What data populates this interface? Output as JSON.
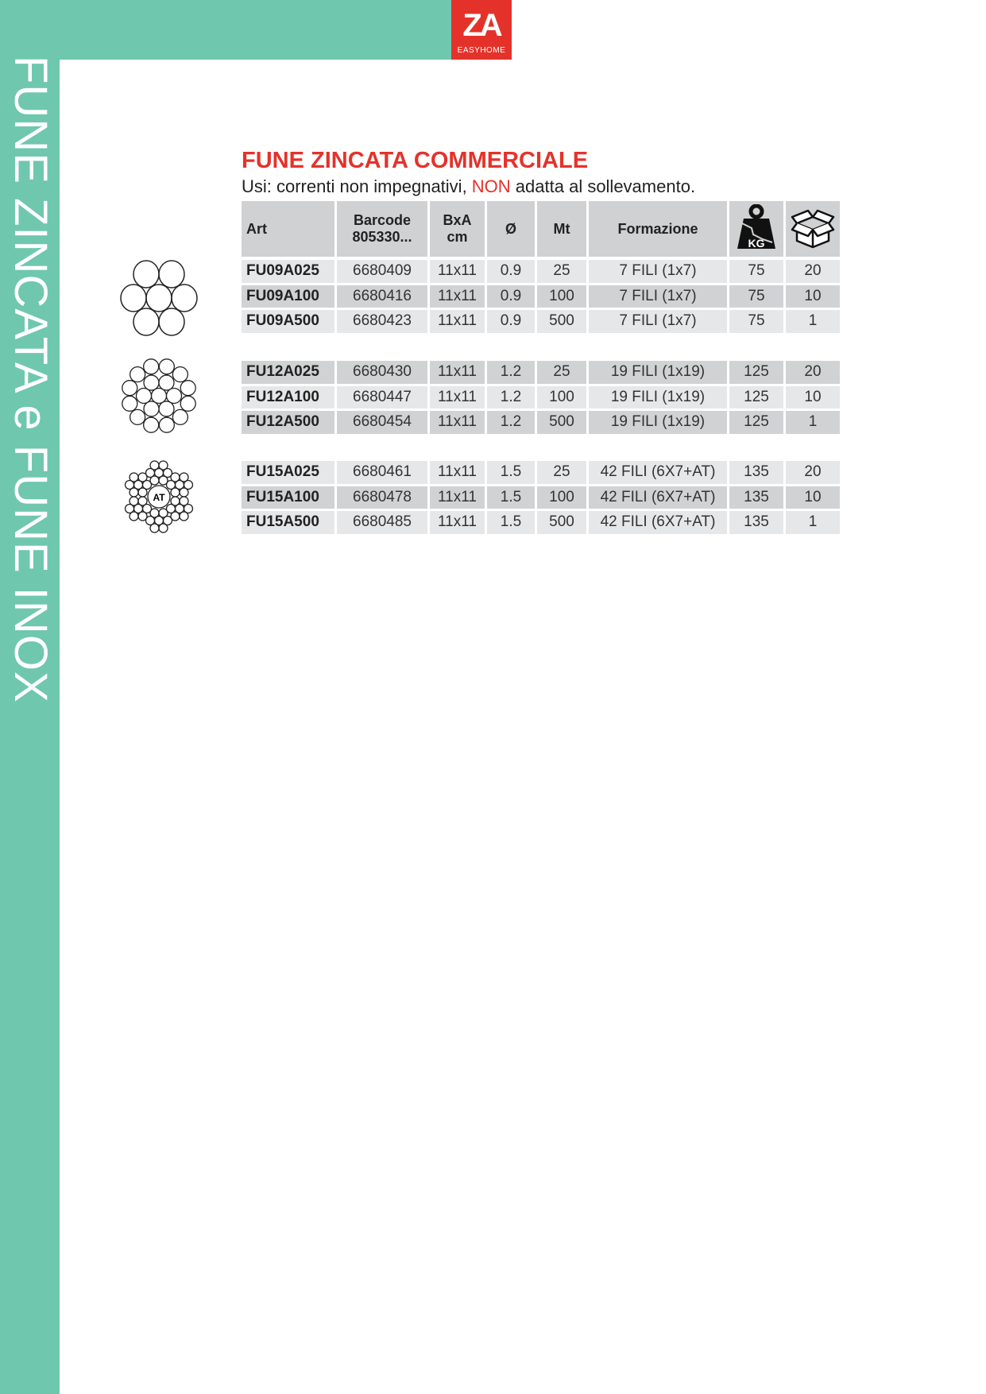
{
  "colors": {
    "green": "#6fc7ae",
    "red": "#e4322b"
  },
  "side_title": "FUNE ZINCATA e FUNE INOX",
  "logo": {
    "mark": "ZA",
    "sub": "EASYHOME"
  },
  "title": "FUNE ZINCATA COMMERCIALE",
  "subtitle": {
    "pre": "Usi: correnti non impegnativi, ",
    "highlight": "NON",
    "post": " adatta al sollevamento."
  },
  "table": {
    "headers": {
      "art": "Art",
      "barcode_1": "Barcode",
      "barcode_2": "805330...",
      "bxa_1": "BxA",
      "bxa_2": "cm",
      "diam": "Ø",
      "mt": "Mt",
      "formazione": "Formazione",
      "weight_icon": "kg-weight-icon",
      "weight_label": "KG",
      "box_icon": "box-icon"
    },
    "groups": [
      {
        "rope_icon": "rope-7-wires-icon",
        "rows": [
          [
            "FU09A025",
            "6680409",
            "11x11",
            "0.9",
            "25",
            "7 FILI (1x7)",
            "75",
            "20"
          ],
          [
            "FU09A100",
            "6680416",
            "11x11",
            "0.9",
            "100",
            "7 FILI (1x7)",
            "75",
            "10"
          ],
          [
            "FU09A500",
            "6680423",
            "11x11",
            "0.9",
            "500",
            "7 FILI (1x7)",
            "75",
            "1"
          ]
        ]
      },
      {
        "rope_icon": "rope-19-wires-icon",
        "rows": [
          [
            "FU12A025",
            "6680430",
            "11x11",
            "1.2",
            "25",
            "19 FILI (1x19)",
            "125",
            "20"
          ],
          [
            "FU12A100",
            "6680447",
            "11x11",
            "1.2",
            "100",
            "19 FILI (1x19)",
            "125",
            "10"
          ],
          [
            "FU12A500",
            "6680454",
            "11x11",
            "1.2",
            "500",
            "19 FILI (1x19)",
            "125",
            "1"
          ]
        ]
      },
      {
        "rope_icon": "rope-42-wires-icon",
        "rope_label": "AT",
        "rows": [
          [
            "FU15A025",
            "6680461",
            "11x11",
            "1.5",
            "25",
            "42 FILI (6X7+AT)",
            "135",
            "20"
          ],
          [
            "FU15A100",
            "6680478",
            "11x11",
            "1.5",
            "100",
            "42 FILI (6X7+AT)",
            "135",
            "10"
          ],
          [
            "FU15A500",
            "6680485",
            "11x11",
            "1.5",
            "500",
            "42 FILI (6X7+AT)",
            "135",
            "1"
          ]
        ]
      }
    ]
  }
}
